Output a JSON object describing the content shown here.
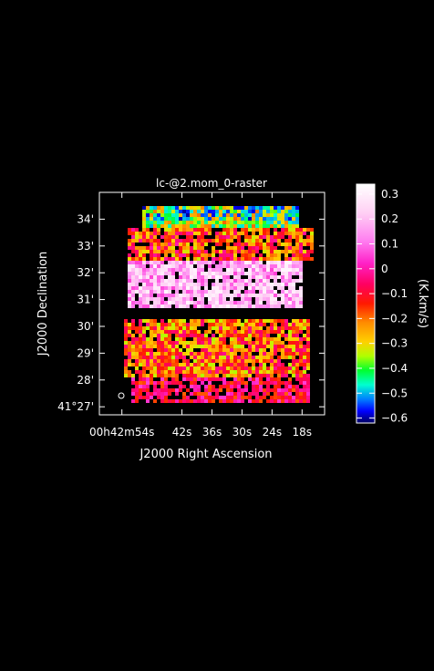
{
  "chart_data": {
    "type": "heatmap",
    "title": "lc-@2.mom_0-raster",
    "xlabel": "J2000 Right Ascension",
    "ylabel": "J2000 Declination",
    "colorbar_label": "(K.km/s)",
    "colorbar_ticks": [
      "0.3",
      "0.2",
      "0.1",
      "0",
      "−0.1",
      "−0.2",
      "−0.3",
      "−0.4",
      "−0.5",
      "−0.6"
    ],
    "colorbar_range": [
      -0.62,
      0.34
    ],
    "x_ticks": [
      {
        "label": "00h42m54s",
        "value": 54
      },
      {
        "label": "42s",
        "value": 42
      },
      {
        "label": "36s",
        "value": 36
      },
      {
        "label": "30s",
        "value": 30
      },
      {
        "label": "24s",
        "value": 24
      },
      {
        "label": "18s",
        "value": 18
      }
    ],
    "y_ticks": [
      {
        "label": "34'",
        "value": 34
      },
      {
        "label": "33'",
        "value": 33
      },
      {
        "label": "32'",
        "value": 32
      },
      {
        "label": "31'",
        "value": 31
      },
      {
        "label": "30'",
        "value": 30
      },
      {
        "label": "29'",
        "value": 29
      },
      {
        "label": "28'",
        "value": 28
      },
      {
        "label": "41°27'",
        "value": 27
      }
    ],
    "xlim_ra_seconds": [
      58.5,
      13.5
    ],
    "ylim_arcmin": [
      26.7,
      35.0
    ],
    "grid": false,
    "beam_marker": true
  }
}
